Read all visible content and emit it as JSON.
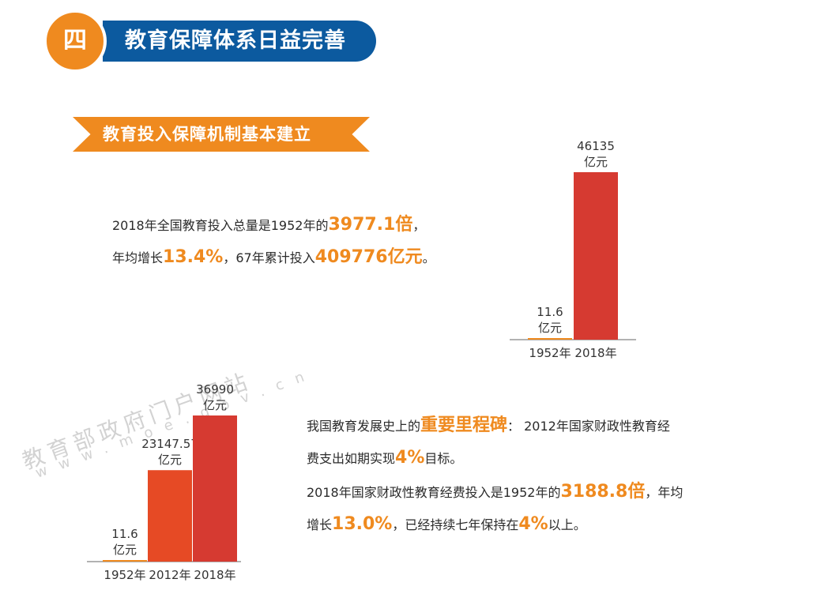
{
  "header": {
    "section_number": "四",
    "title": "教育保障体系日益完善"
  },
  "subheader": {
    "title": "教育投入保障机制基本建立"
  },
  "paragraph1": {
    "line1_a": "2018年全国教育投入总量是1952年的",
    "line1_hl": "3977.1倍",
    "line1_b": "，",
    "line2_a": "年均增长",
    "line2_hl1": "13.4%",
    "line2_b": "，67年累计投入",
    "line2_hl2": "409776亿元",
    "line2_c": "。"
  },
  "paragraph2": {
    "line1_a": "我国教育发展史上的",
    "line1_hl": "重要里程碑",
    "line1_b": "：  2012年国家财政性教育经",
    "line2_a": "费支出如期实现",
    "line2_hl": "4%",
    "line2_b": "目标。",
    "line3_a": "2018年国家财政性教育经费投入是1952年的",
    "line3_hl": "3188.8倍",
    "line3_b": "，年均",
    "line4_a": "增长",
    "line4_hl1": "13.0%",
    "line4_b": "，已经持续七年保持在",
    "line4_hl2": "4%",
    "line4_c": "以上。"
  },
  "watermark": {
    "line1": "教育部政府门户网站",
    "line2": "www.moe.gov.cn"
  },
  "colors": {
    "orange": "#ef8a1f",
    "blue": "#0c5a9f",
    "red": "#d63a31",
    "red_orange": "#e64a25"
  },
  "chart_data": [
    {
      "type": "bar",
      "categories": [
        "1952年",
        "2018年"
      ],
      "values": [
        11.6,
        46135
      ],
      "data_labels": [
        [
          "11.6",
          "亿元"
        ],
        [
          "46135",
          "亿元"
        ]
      ],
      "colors": [
        "#ef8a1f",
        "#d63a31"
      ],
      "ylim": [
        0,
        46135
      ]
    },
    {
      "type": "bar",
      "categories": [
        "1952年",
        "2012年",
        "2018年"
      ],
      "values": [
        11.6,
        23147.57,
        36990
      ],
      "data_labels": [
        [
          "11.6",
          "亿元"
        ],
        [
          "23147.57",
          "亿元"
        ],
        [
          "36990",
          "亿元"
        ]
      ],
      "colors": [
        "#ef8a1f",
        "#e64a25",
        "#d63a31"
      ],
      "ylim": [
        0,
        36990
      ]
    }
  ]
}
